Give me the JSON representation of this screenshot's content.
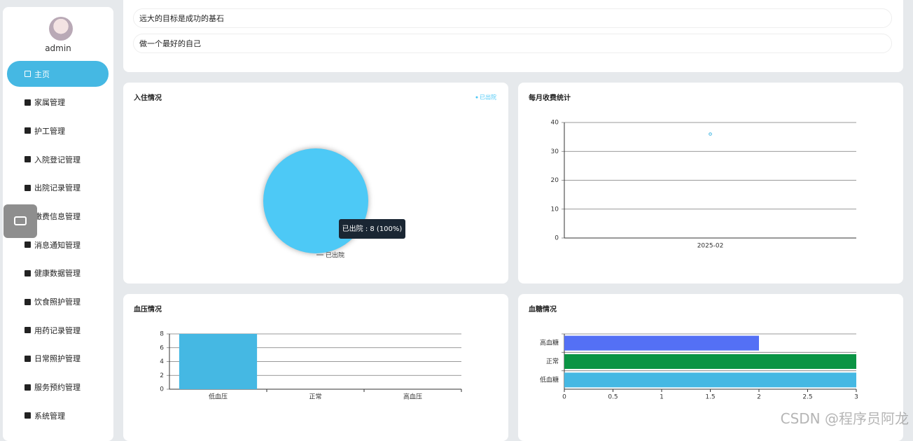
{
  "sidebar": {
    "user": "admin",
    "menu": [
      "主页",
      "家属管理",
      "护工管理",
      "入院登记管理",
      "出院记录管理",
      "缴费信息管理",
      "消息通知管理",
      "健康数据管理",
      "饮食照护管理",
      "用药记录管理",
      "日常照护管理",
      "服务预约管理",
      "系统管理"
    ]
  },
  "notices": [
    "远大的目标是成功的基石",
    "做一个最好的自己"
  ],
  "watermark": "CSDN @程序员阿龙",
  "chart_data": [
    {
      "type": "pie",
      "title": "入住情况",
      "categories": [
        "已出院"
      ],
      "values": [
        8
      ],
      "colors": [
        "#4dc9f6"
      ],
      "tooltip": "已出院 : 8 (100%)",
      "legend": "top-right"
    },
    {
      "type": "line",
      "title": "每月收费统计",
      "categories": [
        "2025-02"
      ],
      "values": [
        36
      ],
      "color": "#45b8e3",
      "ylim": [
        0,
        40
      ],
      "yticks": [
        0,
        10,
        20,
        30,
        40
      ],
      "grid": true
    },
    {
      "type": "bar",
      "title": "血压情况",
      "categories": [
        "低血压",
        "正常",
        "高血压"
      ],
      "values": [
        8,
        0,
        0
      ],
      "color": "#45b8e3",
      "ylim": [
        0,
        8
      ],
      "yticks": [
        0,
        2,
        4,
        6,
        8
      ],
      "grid": true
    },
    {
      "type": "hbar",
      "title": "血糖情况",
      "categories": [
        "高血糖",
        "正常",
        "低血糖"
      ],
      "values": [
        2,
        3,
        3
      ],
      "colors": [
        "#5470f5",
        "#0a9444",
        "#45b8e3"
      ],
      "xlim": [
        0,
        3
      ],
      "xticks": [
        0,
        0.5,
        1,
        1.5,
        2,
        2.5,
        3
      ],
      "grid": true
    }
  ]
}
